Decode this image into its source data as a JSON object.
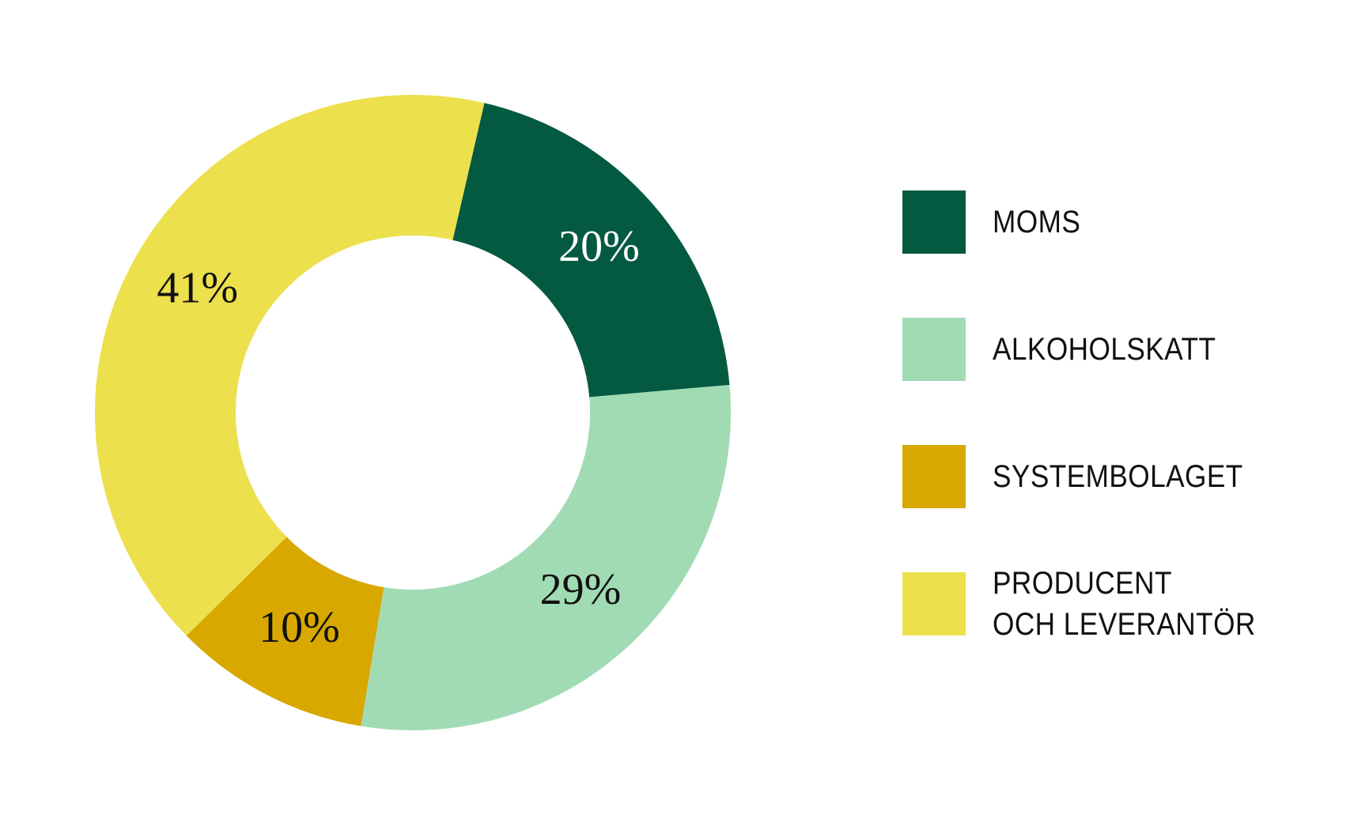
{
  "chart_data": {
    "type": "donut",
    "series": [
      {
        "name": "MOMS",
        "color": "#035a41",
        "values": [
          20
        ],
        "value_labels": [
          "20%"
        ]
      },
      {
        "name": "ALKOHOLSKATT",
        "color": "#a1dbb4",
        "values": [
          29
        ],
        "value_labels": [
          "29%"
        ]
      },
      {
        "name": "SYSTEMBOLAGET",
        "color": "#d8a800",
        "values": [
          10
        ],
        "value_labels": [
          "10%"
        ]
      },
      {
        "name": "PRODUCENT\nOCH LEVERANTÖR",
        "color": "#ede04d",
        "values": [
          41
        ],
        "value_labels": [
          "41%"
        ]
      }
    ]
  }
}
